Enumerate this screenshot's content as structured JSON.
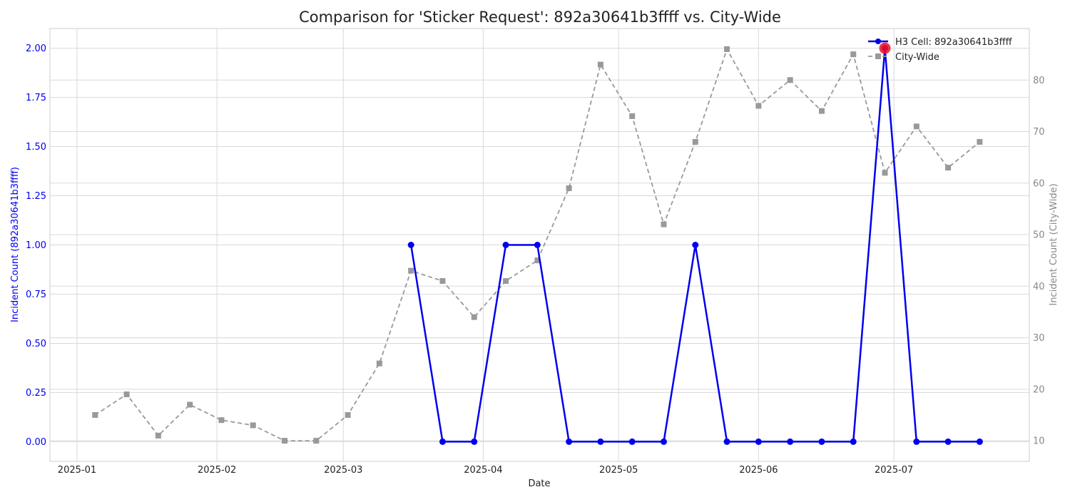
{
  "chart_data": {
    "type": "line",
    "title": "Comparison for 'Sticker Request': 892a30641b3ffff vs. City-Wide",
    "xlabel": "Date",
    "ylabel_left": "Incident Count (892a30641b3ffff)",
    "ylabel_right": "Incident Count (City-Wide)",
    "x_ticks": [
      "2025-01",
      "2025-02",
      "2025-03",
      "2025-04",
      "2025-05",
      "2025-06",
      "2025-07"
    ],
    "y_left_ticks": [
      "0.00",
      "0.25",
      "0.50",
      "0.75",
      "1.00",
      "1.25",
      "1.50",
      "1.75",
      "2.00"
    ],
    "y_right_ticks": [
      "10",
      "20",
      "30",
      "40",
      "50",
      "60",
      "70",
      "80"
    ],
    "ylim_left": [
      -0.1,
      2.1
    ],
    "ylim_right": [
      6,
      90
    ],
    "xlim": [
      "2024-12-26",
      "2025-07-31"
    ],
    "grid": true,
    "legend_position": "top-right",
    "series": [
      {
        "name": "H3 Cell: 892a30641b3ffff",
        "axis": "left",
        "color": "#0000ee",
        "style": "solid",
        "marker": "circle",
        "x": [
          "2025-03-16",
          "2025-03-23",
          "2025-03-30",
          "2025-04-06",
          "2025-04-13",
          "2025-04-20",
          "2025-04-27",
          "2025-05-04",
          "2025-05-11",
          "2025-05-18",
          "2025-05-25",
          "2025-06-01",
          "2025-06-08",
          "2025-06-15",
          "2025-06-22",
          "2025-06-29",
          "2025-07-06",
          "2025-07-13",
          "2025-07-20"
        ],
        "values": [
          1,
          0,
          0,
          1,
          1,
          0,
          0,
          0,
          0,
          1,
          0,
          0,
          0,
          0,
          0,
          2,
          0,
          0,
          0
        ]
      },
      {
        "name": "City-Wide",
        "axis": "right",
        "color": "#999999",
        "style": "dashed",
        "marker": "square",
        "x": [
          "2025-01-05",
          "2025-01-12",
          "2025-01-19",
          "2025-01-26",
          "2025-02-02",
          "2025-02-09",
          "2025-02-16",
          "2025-02-23",
          "2025-03-02",
          "2025-03-09",
          "2025-03-16",
          "2025-03-23",
          "2025-03-30",
          "2025-04-06",
          "2025-04-13",
          "2025-04-20",
          "2025-04-27",
          "2025-05-04",
          "2025-05-11",
          "2025-05-18",
          "2025-05-25",
          "2025-06-01",
          "2025-06-08",
          "2025-06-15",
          "2025-06-22",
          "2025-06-29",
          "2025-07-06",
          "2025-07-13",
          "2025-07-20"
        ],
        "values": [
          15,
          19,
          11,
          17,
          14,
          13,
          10,
          10,
          15,
          25,
          43,
          41,
          34,
          41,
          45,
          59,
          83,
          73,
          52,
          68,
          86,
          75,
          80,
          74,
          85,
          62,
          71,
          63,
          68
        ]
      }
    ],
    "highlight": {
      "series": "H3 Cell: 892a30641b3ffff",
      "x": "2025-06-29",
      "value": 2,
      "color": "#ee1122"
    }
  }
}
